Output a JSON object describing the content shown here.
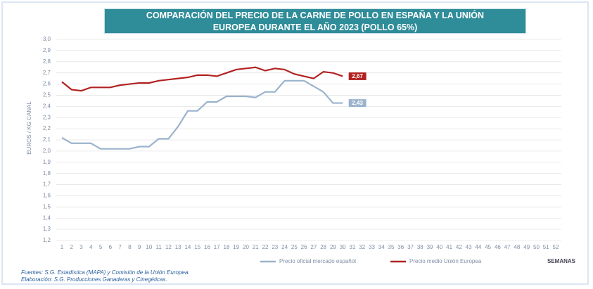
{
  "chart_data": {
    "type": "line",
    "title": "COMPARACIÓN DEL PRECIO DE LA CARNE DE POLLO EN ESPAÑA Y LA UNIÓN EUROPEA DURANTE EL AÑO 2023 (POLLO 65%)",
    "y_label": "EUROS / KG CANAL",
    "x_label": "SEMANAS",
    "categories": [
      1,
      2,
      3,
      4,
      5,
      6,
      7,
      8,
      9,
      10,
      11,
      12,
      13,
      14,
      15,
      16,
      17,
      18,
      19,
      20,
      21,
      22,
      23,
      24,
      25,
      26,
      27,
      28,
      29,
      30,
      31,
      32,
      33,
      34,
      35,
      36,
      37,
      38,
      39,
      40,
      41,
      42,
      43,
      44,
      45,
      46,
      47,
      48,
      49,
      50,
      51,
      52
    ],
    "series": [
      {
        "name": "Precio oficial mercado español",
        "color": "#9bb3cc",
        "values": [
          2.12,
          2.07,
          2.07,
          2.07,
          2.02,
          2.02,
          2.02,
          2.02,
          2.04,
          2.04,
          2.11,
          2.11,
          2.22,
          2.36,
          2.36,
          2.44,
          2.44,
          2.49,
          2.49,
          2.49,
          2.48,
          2.53,
          2.53,
          2.63,
          2.63,
          2.63,
          2.58,
          2.53,
          2.43,
          2.43,
          null,
          null,
          null,
          null,
          null,
          null,
          null,
          null,
          null,
          null,
          null,
          null,
          null,
          null,
          null,
          null,
          null,
          null,
          null,
          null,
          null,
          null
        ],
        "value_labels": [
          null,
          null,
          null,
          null,
          null,
          null,
          null,
          null,
          null,
          null,
          null,
          null,
          null,
          null,
          null,
          null,
          null,
          null,
          null,
          null,
          null,
          null,
          null,
          null,
          null,
          null,
          null,
          null,
          null,
          "2,43",
          null,
          null,
          null,
          null,
          null,
          null,
          null,
          null,
          null,
          null,
          null,
          null,
          null,
          null,
          null,
          null,
          null,
          null,
          null,
          null,
          null,
          null
        ]
      },
      {
        "name": "Precio medio Unión Europea",
        "color": "#b22222",
        "values": [
          2.62,
          2.55,
          2.54,
          2.57,
          2.57,
          2.57,
          2.59,
          2.6,
          2.61,
          2.61,
          2.63,
          2.64,
          2.65,
          2.66,
          2.68,
          2.68,
          2.67,
          2.7,
          2.73,
          2.74,
          2.75,
          2.72,
          2.74,
          2.73,
          2.69,
          2.67,
          2.65,
          2.71,
          2.7,
          2.67,
          null,
          null,
          null,
          null,
          null,
          null,
          null,
          null,
          null,
          null,
          null,
          null,
          null,
          null,
          null,
          null,
          null,
          null,
          null,
          null,
          null,
          null
        ],
        "value_labels": [
          null,
          null,
          null,
          null,
          null,
          null,
          null,
          null,
          null,
          null,
          null,
          null,
          null,
          null,
          null,
          null,
          null,
          null,
          null,
          null,
          null,
          null,
          null,
          null,
          null,
          null,
          null,
          null,
          null,
          "2,67",
          null,
          null,
          null,
          null,
          null,
          null,
          null,
          null,
          null,
          null,
          null,
          null,
          null,
          null,
          null,
          null,
          null,
          null,
          null,
          null,
          null,
          null
        ]
      }
    ],
    "ylim": [
      1.2,
      3.0
    ],
    "yticks": [
      {
        "value": 1.2,
        "label": "1,2"
      },
      {
        "value": 1.3,
        "label": "1,3"
      },
      {
        "value": 1.4,
        "label": "1,4"
      },
      {
        "value": 1.5,
        "label": "1,5"
      },
      {
        "value": 1.6,
        "label": "1,6"
      },
      {
        "value": 1.7,
        "label": "1,7"
      },
      {
        "value": 1.8,
        "label": "1,8"
      },
      {
        "value": 1.9,
        "label": "1,9"
      },
      {
        "value": 2.0,
        "label": "2,0"
      },
      {
        "value": 2.1,
        "label": "2,1"
      },
      {
        "value": 2.2,
        "label": "2,2"
      },
      {
        "value": 2.3,
        "label": "2,3"
      },
      {
        "value": 2.4,
        "label": "2,4"
      },
      {
        "value": 2.5,
        "label": "2,5"
      },
      {
        "value": 2.6,
        "label": "2,6"
      },
      {
        "value": 2.7,
        "label": "2,7"
      },
      {
        "value": 2.8,
        "label": "2,8"
      },
      {
        "value": 2.9,
        "label": "2,9"
      },
      {
        "value": 3.0,
        "label": "3,0"
      }
    ],
    "grid": true,
    "sources": [
      "Fuentes: S.G. Estadística (MAPA) y Comisión de la Unión Europea.",
      "Elaboración: S.G. Producciones Ganaderas y Cinegéticas."
    ]
  }
}
